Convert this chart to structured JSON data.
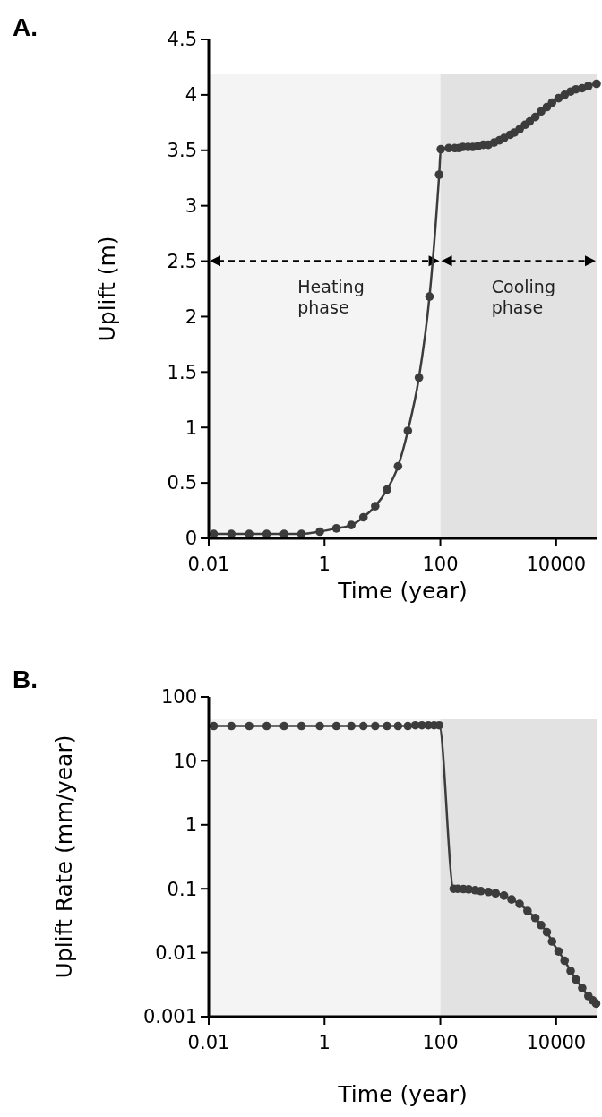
{
  "chart_data": [
    {
      "type": "line",
      "title": "A.",
      "xlabel": "Time (year)",
      "ylabel": "Uplift (m)",
      "log": "x",
      "xlim": [
        0.01,
        50000
      ],
      "xticks": [
        0.01,
        1,
        100,
        10000
      ],
      "ylim": [
        0,
        4.5
      ],
      "yticks": [
        0,
        0.5,
        1,
        1.5,
        2,
        2.5,
        3,
        3.5,
        4,
        4.5
      ],
      "marker": "circle",
      "line_style": "solid",
      "bands": [
        {
          "axis": "x",
          "from": 0.01,
          "to": 100,
          "label": "Heating phase",
          "color": "#f4f4f4"
        },
        {
          "axis": "x",
          "from": 100,
          "to": 50000,
          "label": "Cooling phase",
          "color": "#e2e2e2"
        }
      ],
      "series": [
        {
          "color": "#3c3c3c",
          "x": [
            0.0122,
            0.0246,
            0.05,
            0.1,
            0.2,
            0.4,
            0.83,
            1.6,
            2.9,
            4.7,
            7.5,
            12,
            18.6,
            27.5,
            42.7,
            65,
            95.5,
            102,
            140,
            178,
            210,
            245,
            300,
            363,
            450,
            550,
            676,
            850,
            1050,
            1260,
            1600,
            1900,
            2340,
            2900,
            3500,
            4370,
            5500,
            6920,
            8500,
            11000,
            14000,
            17800,
            22000,
            28200,
            36000,
            50000
          ],
          "values": [
            0.04,
            0.04,
            0.04,
            0.04,
            0.04,
            0.04,
            0.06,
            0.09,
            0.12,
            0.19,
            0.29,
            0.44,
            0.65,
            0.97,
            1.45,
            2.18,
            3.28,
            3.51,
            3.52,
            3.52,
            3.52,
            3.53,
            3.53,
            3.53,
            3.54,
            3.55,
            3.55,
            3.57,
            3.59,
            3.61,
            3.64,
            3.66,
            3.69,
            3.73,
            3.76,
            3.8,
            3.85,
            3.89,
            3.93,
            3.97,
            4.0,
            4.03,
            4.05,
            4.06,
            4.08,
            4.1
          ]
        }
      ]
    },
    {
      "type": "line",
      "title": "B.",
      "xlabel": "Time (year)",
      "ylabel": "Uplift Rate (mm/year)",
      "log": "xy",
      "xlim": [
        0.01,
        50000
      ],
      "xticks": [
        0.01,
        1,
        100,
        10000
      ],
      "ylim": [
        0.001,
        100
      ],
      "yticks": [
        0.001,
        0.01,
        0.1,
        1,
        10,
        100
      ],
      "marker": "circle",
      "line_style": "solid",
      "bands": [
        {
          "axis": "x",
          "from": 0.01,
          "to": 100,
          "color": "#f4f4f4"
        },
        {
          "axis": "x",
          "from": 100,
          "to": 50000,
          "color": "#e2e2e2"
        }
      ],
      "series": [
        {
          "color": "#3c3c3c",
          "x": [
            0.0122,
            0.0246,
            0.05,
            0.1,
            0.2,
            0.4,
            0.83,
            1.6,
            2.9,
            4.7,
            7.5,
            12,
            18.6,
            27.5,
            37,
            48,
            62,
            78,
            95.5,
            170,
            200,
            250,
            309,
            400,
            500,
            676,
            900,
            1260,
            1700,
            2340,
            3200,
            4370,
            5500,
            6920,
            8500,
            11000,
            14000,
            17800,
            22000,
            28200,
            36000,
            43000,
            49000
          ],
          "values": [
            35,
            35,
            35,
            35,
            35,
            35,
            35,
            35,
            35,
            35,
            35,
            35,
            35,
            35,
            36,
            36,
            36,
            36,
            36,
            0.1,
            0.1,
            0.099,
            0.098,
            0.095,
            0.092,
            0.089,
            0.085,
            0.078,
            0.068,
            0.058,
            0.045,
            0.035,
            0.027,
            0.021,
            0.015,
            0.0105,
            0.0075,
            0.0052,
            0.0038,
            0.0028,
            0.0021,
            0.0018,
            0.0016
          ]
        }
      ]
    }
  ]
}
